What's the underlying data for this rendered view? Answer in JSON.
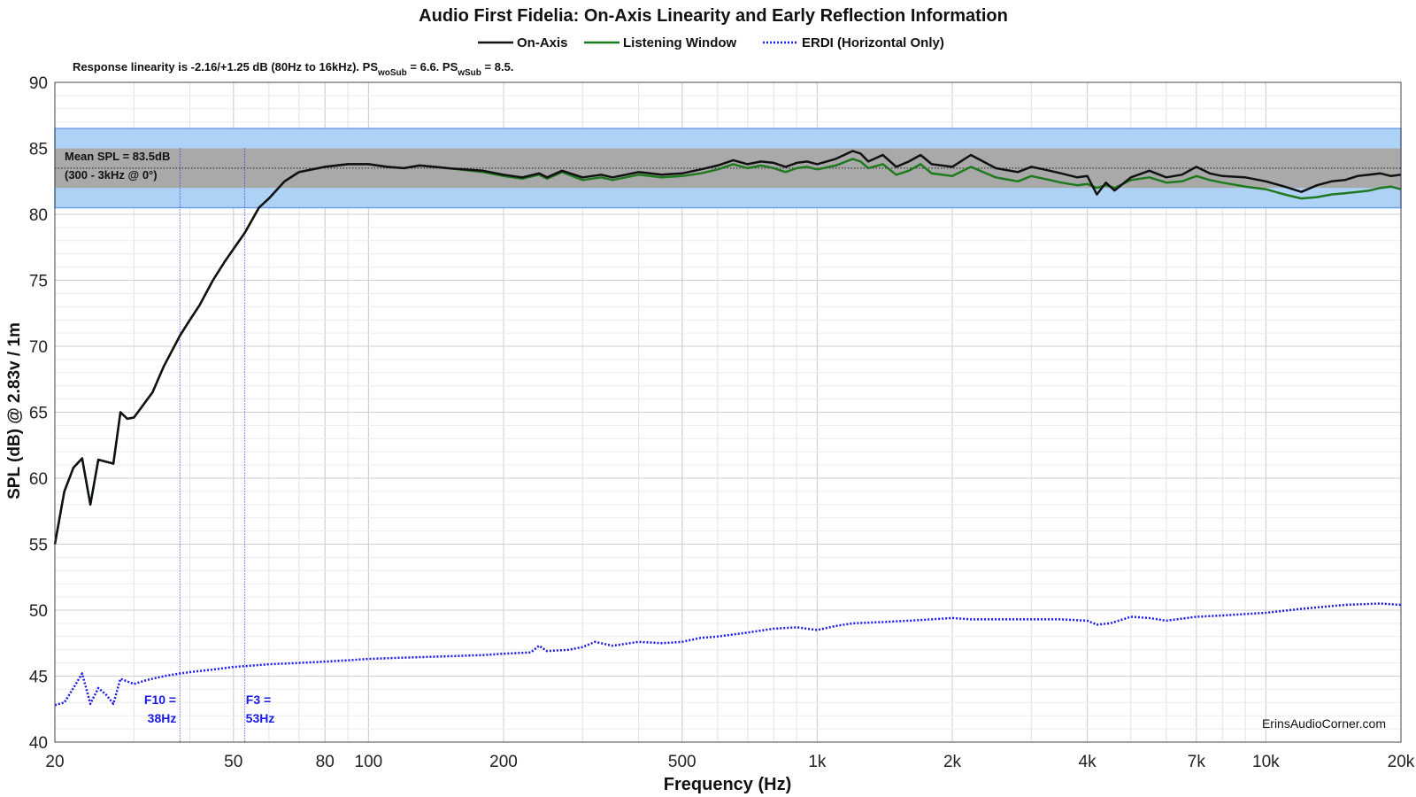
{
  "chart_data": {
    "type": "line",
    "title": "Audio First Fidelia: On-Axis Linearity and Early Reflection Information",
    "subtitle": {
      "prefix": "Response linearity is -2.16/+1.25 dB (80Hz to 16kHz).  PS",
      "sub1": "woSub",
      "mid": " = 6.6.  PS",
      "sub2": "wSub",
      "suffix": " = 8.5."
    },
    "xlabel": "Frequency (Hz)",
    "ylabel": "SPL (dB) @ 2.83v / 1m",
    "x_scale": "log",
    "xlim": [
      20,
      20000
    ],
    "ylim": [
      40,
      90
    ],
    "grid": true,
    "x_ticks": [
      {
        "value": 20,
        "label": "20"
      },
      {
        "value": 50,
        "label": "50"
      },
      {
        "value": 80,
        "label": "80"
      },
      {
        "value": 100,
        "label": "100"
      },
      {
        "value": 200,
        "label": "200"
      },
      {
        "value": 500,
        "label": "500"
      },
      {
        "value": 1000,
        "label": "1k"
      },
      {
        "value": 2000,
        "label": "2k"
      },
      {
        "value": 4000,
        "label": "4k"
      },
      {
        "value": 7000,
        "label": "7k"
      },
      {
        "value": 10000,
        "label": "10k"
      },
      {
        "value": 20000,
        "label": "20k"
      }
    ],
    "y_ticks": [
      40,
      45,
      50,
      55,
      60,
      65,
      70,
      75,
      80,
      85,
      90
    ],
    "legend_placement": "top-center",
    "bands": [
      {
        "name": "outer",
        "y": [
          80.5,
          86.5
        ],
        "color": "#aed2f5",
        "border": "#6fa0e8"
      },
      {
        "name": "mean",
        "y": [
          82.0,
          85.0
        ],
        "color": "#a9a9a9"
      }
    ],
    "mean_spl": {
      "value": 83.5,
      "line1": "Mean SPL = 83.5dB",
      "line2": "(300 - 3kHz @ 0°)"
    },
    "markers": [
      {
        "x": 38,
        "label1": "F10 =",
        "label2": "38Hz",
        "color": "#1a1ae6"
      },
      {
        "x": 53,
        "label1": "F3 =",
        "label2": "53Hz",
        "color": "#1a1ae6"
      }
    ],
    "watermark": "ErinsAudioCorner.com",
    "series": [
      {
        "name": "On-Axis",
        "color": "#111111",
        "style": "solid",
        "points": [
          [
            20,
            55
          ],
          [
            21,
            59
          ],
          [
            22,
            60.8
          ],
          [
            23,
            61.5
          ],
          [
            24,
            58
          ],
          [
            25,
            61.4
          ],
          [
            27,
            61.1
          ],
          [
            28,
            65
          ],
          [
            29,
            64.5
          ],
          [
            30,
            64.6
          ],
          [
            33,
            66.5
          ],
          [
            35,
            68.5
          ],
          [
            38,
            70.8
          ],
          [
            40,
            72
          ],
          [
            42,
            73.1
          ],
          [
            45,
            75
          ],
          [
            48,
            76.5
          ],
          [
            53,
            78.6
          ],
          [
            57,
            80.5
          ],
          [
            60,
            81.2
          ],
          [
            65,
            82.5
          ],
          [
            70,
            83.2
          ],
          [
            80,
            83.6
          ],
          [
            90,
            83.8
          ],
          [
            100,
            83.8
          ],
          [
            110,
            83.6
          ],
          [
            120,
            83.5
          ],
          [
            130,
            83.7
          ],
          [
            140,
            83.6
          ],
          [
            150,
            83.5
          ],
          [
            180,
            83.3
          ],
          [
            200,
            83
          ],
          [
            220,
            82.8
          ],
          [
            240,
            83.1
          ],
          [
            250,
            82.8
          ],
          [
            270,
            83.3
          ],
          [
            300,
            82.8
          ],
          [
            330,
            83
          ],
          [
            350,
            82.8
          ],
          [
            400,
            83.2
          ],
          [
            450,
            83.0
          ],
          [
            500,
            83.1
          ],
          [
            550,
            83.4
          ],
          [
            600,
            83.7
          ],
          [
            650,
            84.1
          ],
          [
            700,
            83.8
          ],
          [
            750,
            84.0
          ],
          [
            800,
            83.9
          ],
          [
            850,
            83.6
          ],
          [
            900,
            83.9
          ],
          [
            950,
            84.0
          ],
          [
            1000,
            83.8
          ],
          [
            1100,
            84.2
          ],
          [
            1200,
            84.8
          ],
          [
            1250,
            84.6
          ],
          [
            1300,
            84.0
          ],
          [
            1400,
            84.5
          ],
          [
            1500,
            83.6
          ],
          [
            1600,
            84.0
          ],
          [
            1700,
            84.5
          ],
          [
            1800,
            83.8
          ],
          [
            2000,
            83.6
          ],
          [
            2200,
            84.5
          ],
          [
            2500,
            83.5
          ],
          [
            2800,
            83.2
          ],
          [
            3000,
            83.6
          ],
          [
            3200,
            83.4
          ],
          [
            3500,
            83.1
          ],
          [
            3800,
            82.8
          ],
          [
            4000,
            82.9
          ],
          [
            4200,
            81.5
          ],
          [
            4400,
            82.4
          ],
          [
            4600,
            81.8
          ],
          [
            5000,
            82.8
          ],
          [
            5500,
            83.3
          ],
          [
            6000,
            82.8
          ],
          [
            6500,
            83.0
          ],
          [
            7000,
            83.6
          ],
          [
            7500,
            83.1
          ],
          [
            8000,
            82.9
          ],
          [
            9000,
            82.8
          ],
          [
            10000,
            82.5
          ],
          [
            11000,
            82.1
          ],
          [
            12000,
            81.7
          ],
          [
            13000,
            82.2
          ],
          [
            14000,
            82.5
          ],
          [
            15000,
            82.6
          ],
          [
            16000,
            82.9
          ],
          [
            17000,
            83.0
          ],
          [
            18000,
            83.1
          ],
          [
            19000,
            82.9
          ],
          [
            20000,
            83.0
          ]
        ]
      },
      {
        "name": "Listening Window",
        "color": "#1f7a1f",
        "style": "solid",
        "points": [
          [
            20,
            55
          ],
          [
            21,
            59
          ],
          [
            22,
            60.8
          ],
          [
            23,
            61.5
          ],
          [
            24,
            58
          ],
          [
            25,
            61.4
          ],
          [
            27,
            61.1
          ],
          [
            28,
            65
          ],
          [
            29,
            64.5
          ],
          [
            30,
            64.6
          ],
          [
            33,
            66.5
          ],
          [
            35,
            68.5
          ],
          [
            38,
            70.8
          ],
          [
            40,
            72
          ],
          [
            42,
            73.1
          ],
          [
            45,
            75
          ],
          [
            48,
            76.5
          ],
          [
            53,
            78.6
          ],
          [
            57,
            80.5
          ],
          [
            60,
            81.2
          ],
          [
            65,
            82.5
          ],
          [
            70,
            83.2
          ],
          [
            80,
            83.6
          ],
          [
            90,
            83.8
          ],
          [
            100,
            83.8
          ],
          [
            110,
            83.6
          ],
          [
            120,
            83.5
          ],
          [
            130,
            83.7
          ],
          [
            140,
            83.6
          ],
          [
            150,
            83.5
          ],
          [
            180,
            83.2
          ],
          [
            200,
            82.9
          ],
          [
            220,
            82.7
          ],
          [
            240,
            83.0
          ],
          [
            250,
            82.7
          ],
          [
            270,
            83.2
          ],
          [
            300,
            82.6
          ],
          [
            330,
            82.8
          ],
          [
            350,
            82.6
          ],
          [
            400,
            83.0
          ],
          [
            450,
            82.8
          ],
          [
            500,
            82.9
          ],
          [
            550,
            83.1
          ],
          [
            600,
            83.4
          ],
          [
            650,
            83.8
          ],
          [
            700,
            83.5
          ],
          [
            750,
            83.7
          ],
          [
            800,
            83.5
          ],
          [
            850,
            83.2
          ],
          [
            900,
            83.5
          ],
          [
            950,
            83.6
          ],
          [
            1000,
            83.4
          ],
          [
            1100,
            83.7
          ],
          [
            1200,
            84.2
          ],
          [
            1250,
            84.0
          ],
          [
            1300,
            83.5
          ],
          [
            1400,
            83.8
          ],
          [
            1500,
            83.0
          ],
          [
            1600,
            83.3
          ],
          [
            1700,
            83.8
          ],
          [
            1800,
            83.1
          ],
          [
            2000,
            82.9
          ],
          [
            2200,
            83.6
          ],
          [
            2500,
            82.8
          ],
          [
            2800,
            82.5
          ],
          [
            3000,
            82.9
          ],
          [
            3200,
            82.7
          ],
          [
            3500,
            82.4
          ],
          [
            3800,
            82.2
          ],
          [
            4000,
            82.3
          ],
          [
            4200,
            82.0
          ],
          [
            4400,
            82.2
          ],
          [
            4600,
            82.0
          ],
          [
            5000,
            82.6
          ],
          [
            5500,
            82.8
          ],
          [
            6000,
            82.4
          ],
          [
            6500,
            82.5
          ],
          [
            7000,
            82.9
          ],
          [
            7500,
            82.6
          ],
          [
            8000,
            82.4
          ],
          [
            9000,
            82.1
          ],
          [
            10000,
            81.9
          ],
          [
            11000,
            81.5
          ],
          [
            12000,
            81.2
          ],
          [
            13000,
            81.3
          ],
          [
            14000,
            81.5
          ],
          [
            15000,
            81.6
          ],
          [
            16000,
            81.7
          ],
          [
            17000,
            81.8
          ],
          [
            18000,
            82.0
          ],
          [
            19000,
            82.1
          ],
          [
            20000,
            81.9
          ]
        ]
      },
      {
        "name": "ERDI (Horizontal Only)",
        "color": "#1a1ae6",
        "style": "dotted",
        "points": [
          [
            20,
            42.8
          ],
          [
            21,
            43.0
          ],
          [
            22,
            44.1
          ],
          [
            23,
            45.2
          ],
          [
            24,
            42.9
          ],
          [
            25,
            44.1
          ],
          [
            26,
            43.6
          ],
          [
            27,
            42.9
          ],
          [
            28,
            44.8
          ],
          [
            29,
            44.6
          ],
          [
            30,
            44.4
          ],
          [
            32,
            44.7
          ],
          [
            35,
            45.0
          ],
          [
            38,
            45.2
          ],
          [
            40,
            45.3
          ],
          [
            45,
            45.5
          ],
          [
            50,
            45.7
          ],
          [
            55,
            45.8
          ],
          [
            60,
            45.9
          ],
          [
            70,
            46.0
          ],
          [
            80,
            46.1
          ],
          [
            90,
            46.2
          ],
          [
            100,
            46.3
          ],
          [
            120,
            46.4
          ],
          [
            150,
            46.5
          ],
          [
            180,
            46.6
          ],
          [
            200,
            46.7
          ],
          [
            230,
            46.8
          ],
          [
            240,
            47.3
          ],
          [
            250,
            46.9
          ],
          [
            280,
            47.0
          ],
          [
            300,
            47.2
          ],
          [
            320,
            47.6
          ],
          [
            350,
            47.3
          ],
          [
            400,
            47.6
          ],
          [
            450,
            47.5
          ],
          [
            500,
            47.6
          ],
          [
            550,
            47.9
          ],
          [
            600,
            48.0
          ],
          [
            700,
            48.3
          ],
          [
            800,
            48.6
          ],
          [
            900,
            48.7
          ],
          [
            1000,
            48.5
          ],
          [
            1100,
            48.8
          ],
          [
            1200,
            49.0
          ],
          [
            1400,
            49.1
          ],
          [
            1600,
            49.2
          ],
          [
            1800,
            49.3
          ],
          [
            2000,
            49.4
          ],
          [
            2200,
            49.3
          ],
          [
            2500,
            49.3
          ],
          [
            3000,
            49.3
          ],
          [
            3500,
            49.3
          ],
          [
            4000,
            49.2
          ],
          [
            4200,
            48.9
          ],
          [
            4500,
            49.0
          ],
          [
            5000,
            49.5
          ],
          [
            5500,
            49.4
          ],
          [
            6000,
            49.2
          ],
          [
            7000,
            49.5
          ],
          [
            8000,
            49.6
          ],
          [
            10000,
            49.8
          ],
          [
            12000,
            50.1
          ],
          [
            15000,
            50.4
          ],
          [
            18000,
            50.5
          ],
          [
            20000,
            50.4
          ]
        ]
      }
    ]
  }
}
